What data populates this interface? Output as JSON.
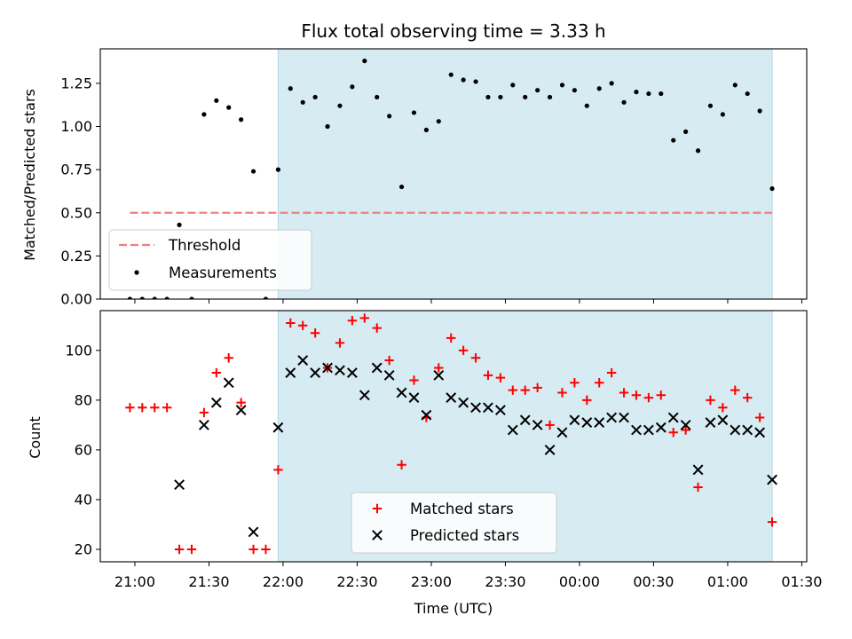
{
  "chart_data": [
    {
      "type": "scatter",
      "title": "Flux total observing time = 3.33 h",
      "ylabel": "Matched/Predicted stars",
      "xlabel": "",
      "ylim": [
        0,
        1.45
      ],
      "yticks": [
        "0.00",
        "0.25",
        "0.50",
        "0.75",
        "1.00",
        "1.25"
      ],
      "grid": false,
      "legend": "lower-left",
      "observing_window": [
        "21:58",
        "01:18"
      ],
      "threshold": {
        "name": "Threshold",
        "value": 0.5,
        "x_start": "20:58",
        "x_end": "01:18",
        "color": "#f08080"
      },
      "series": [
        {
          "name": "Measurements",
          "color": "#000000",
          "points": [
            [
              "20:58",
              0.0
            ],
            [
              "21:03",
              0.0
            ],
            [
              "21:08",
              0.0
            ],
            [
              "21:13",
              0.0
            ],
            [
              "21:18",
              0.43
            ],
            [
              "21:23",
              0.0
            ],
            [
              "21:28",
              1.07
            ],
            [
              "21:33",
              1.15
            ],
            [
              "21:38",
              1.11
            ],
            [
              "21:43",
              1.04
            ],
            [
              "21:48",
              0.74
            ],
            [
              "21:53",
              0.0
            ],
            [
              "21:58",
              0.75
            ],
            [
              "22:03",
              1.22
            ],
            [
              "22:08",
              1.14
            ],
            [
              "22:13",
              1.17
            ],
            [
              "22:18",
              1.0
            ],
            [
              "22:23",
              1.12
            ],
            [
              "22:28",
              1.23
            ],
            [
              "22:33",
              1.38
            ],
            [
              "22:38",
              1.17
            ],
            [
              "22:43",
              1.06
            ],
            [
              "22:48",
              0.65
            ],
            [
              "22:53",
              1.08
            ],
            [
              "22:58",
              0.98
            ],
            [
              "23:03",
              1.03
            ],
            [
              "23:08",
              1.3
            ],
            [
              "23:13",
              1.27
            ],
            [
              "23:18",
              1.26
            ],
            [
              "23:23",
              1.17
            ],
            [
              "23:28",
              1.17
            ],
            [
              "23:33",
              1.24
            ],
            [
              "23:38",
              1.17
            ],
            [
              "23:43",
              1.21
            ],
            [
              "23:48",
              1.17
            ],
            [
              "23:53",
              1.24
            ],
            [
              "23:58",
              1.21
            ],
            [
              "00:03",
              1.12
            ],
            [
              "00:08",
              1.22
            ],
            [
              "00:13",
              1.25
            ],
            [
              "00:18",
              1.14
            ],
            [
              "00:23",
              1.2
            ],
            [
              "00:28",
              1.19
            ],
            [
              "00:33",
              1.19
            ],
            [
              "00:38",
              0.92
            ],
            [
              "00:43",
              0.97
            ],
            [
              "00:48",
              0.86
            ],
            [
              "00:53",
              1.12
            ],
            [
              "00:58",
              1.07
            ],
            [
              "01:03",
              1.24
            ],
            [
              "01:08",
              1.19
            ],
            [
              "01:13",
              1.09
            ],
            [
              "01:18",
              0.64
            ]
          ]
        }
      ]
    },
    {
      "type": "scatter",
      "title": "",
      "ylabel": "Count",
      "xlabel": "Time (UTC)",
      "ylim": [
        15,
        116
      ],
      "yticks": [
        "20",
        "40",
        "60",
        "80",
        "100"
      ],
      "xticks": [
        "21:00",
        "21:30",
        "22:00",
        "22:30",
        "23:00",
        "23:30",
        "00:00",
        "00:30",
        "01:00",
        "01:30"
      ],
      "grid": false,
      "legend": "lower-center",
      "observing_window": [
        "21:58",
        "01:18"
      ],
      "series": [
        {
          "name": "Matched stars",
          "color": "#ff0000",
          "marker": "plus",
          "points": [
            [
              "20:58",
              77
            ],
            [
              "21:03",
              77
            ],
            [
              "21:08",
              77
            ],
            [
              "21:13",
              77
            ],
            [
              "21:18",
              20
            ],
            [
              "21:23",
              20
            ],
            [
              "21:28",
              75
            ],
            [
              "21:33",
              91
            ],
            [
              "21:38",
              97
            ],
            [
              "21:43",
              79
            ],
            [
              "21:48",
              20
            ],
            [
              "21:53",
              20
            ],
            [
              "21:58",
              52
            ],
            [
              "22:03",
              111
            ],
            [
              "22:08",
              110
            ],
            [
              "22:13",
              107
            ],
            [
              "22:18",
              93
            ],
            [
              "22:23",
              103
            ],
            [
              "22:28",
              112
            ],
            [
              "22:33",
              113
            ],
            [
              "22:38",
              109
            ],
            [
              "22:43",
              96
            ],
            [
              "22:48",
              54
            ],
            [
              "22:53",
              88
            ],
            [
              "22:58",
              73
            ],
            [
              "23:03",
              93
            ],
            [
              "23:08",
              105
            ],
            [
              "23:13",
              100
            ],
            [
              "23:18",
              97
            ],
            [
              "23:23",
              90
            ],
            [
              "23:28",
              89
            ],
            [
              "23:33",
              84
            ],
            [
              "23:38",
              84
            ],
            [
              "23:43",
              85
            ],
            [
              "23:48",
              70
            ],
            [
              "23:53",
              83
            ],
            [
              "23:58",
              87
            ],
            [
              "00:03",
              80
            ],
            [
              "00:08",
              87
            ],
            [
              "00:13",
              91
            ],
            [
              "00:18",
              83
            ],
            [
              "00:23",
              82
            ],
            [
              "00:28",
              81
            ],
            [
              "00:33",
              82
            ],
            [
              "00:38",
              67
            ],
            [
              "00:43",
              68
            ],
            [
              "00:48",
              45
            ],
            [
              "00:53",
              80
            ],
            [
              "00:58",
              77
            ],
            [
              "01:03",
              84
            ],
            [
              "01:08",
              81
            ],
            [
              "01:13",
              73
            ],
            [
              "01:18",
              31
            ]
          ]
        },
        {
          "name": "Predicted stars",
          "color": "#000000",
          "marker": "x",
          "points": [
            [
              "21:18",
              46
            ],
            [
              "21:28",
              70
            ],
            [
              "21:33",
              79
            ],
            [
              "21:38",
              87
            ],
            [
              "21:43",
              76
            ],
            [
              "21:48",
              27
            ],
            [
              "21:58",
              69
            ],
            [
              "22:03",
              91
            ],
            [
              "22:08",
              96
            ],
            [
              "22:13",
              91
            ],
            [
              "22:18",
              93
            ],
            [
              "22:23",
              92
            ],
            [
              "22:28",
              91
            ],
            [
              "22:33",
              82
            ],
            [
              "22:38",
              93
            ],
            [
              "22:43",
              90
            ],
            [
              "22:48",
              83
            ],
            [
              "22:53",
              81
            ],
            [
              "22:58",
              74
            ],
            [
              "23:03",
              90
            ],
            [
              "23:08",
              81
            ],
            [
              "23:13",
              79
            ],
            [
              "23:18",
              77
            ],
            [
              "23:23",
              77
            ],
            [
              "23:28",
              76
            ],
            [
              "23:33",
              68
            ],
            [
              "23:38",
              72
            ],
            [
              "23:43",
              70
            ],
            [
              "23:48",
              60
            ],
            [
              "23:53",
              67
            ],
            [
              "23:58",
              72
            ],
            [
              "00:03",
              71
            ],
            [
              "00:08",
              71
            ],
            [
              "00:13",
              73
            ],
            [
              "00:18",
              73
            ],
            [
              "00:23",
              68
            ],
            [
              "00:28",
              68
            ],
            [
              "00:33",
              69
            ],
            [
              "00:38",
              73
            ],
            [
              "00:43",
              70
            ],
            [
              "00:48",
              52
            ],
            [
              "00:53",
              71
            ],
            [
              "00:58",
              72
            ],
            [
              "01:03",
              68
            ],
            [
              "01:08",
              68
            ],
            [
              "01:13",
              67
            ],
            [
              "01:18",
              48
            ]
          ]
        }
      ]
    }
  ]
}
